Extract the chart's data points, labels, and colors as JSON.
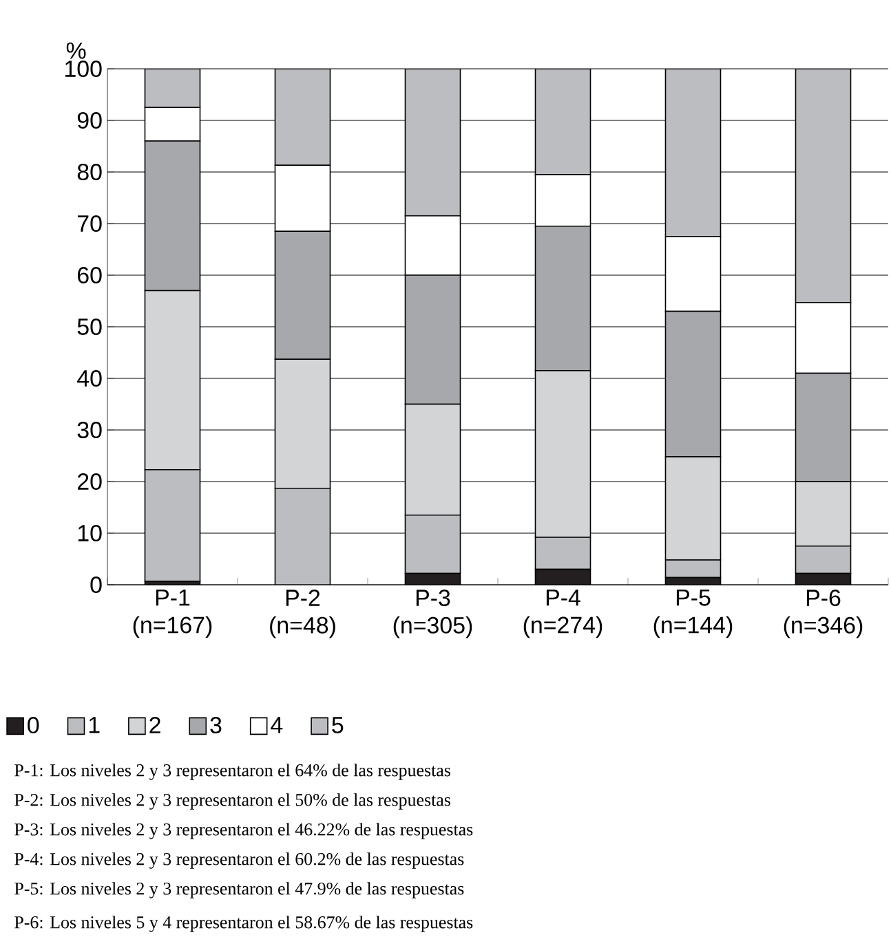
{
  "chart_data": {
    "type": "bar",
    "stacked": true,
    "ylabel": "%",
    "categories": [
      "P-1 (n=167)",
      "P-2 (n=48)",
      "P-3 (n=305)",
      "P-4 (n=274)",
      "P-5 (n=144)",
      "P-6 (n=346)"
    ],
    "series": [
      {
        "name": "0",
        "color": "#231f20",
        "values": [
          0.7,
          0,
          2.2,
          3,
          1.4,
          2.2
        ]
      },
      {
        "name": "1",
        "color": "#bcbdc0",
        "values": [
          21.6,
          18.7,
          11.3,
          6.2,
          3.4,
          5.3
        ]
      },
      {
        "name": "2",
        "color": "#d3d4d6",
        "values": [
          34.7,
          25,
          21.5,
          32.3,
          20,
          12.5
        ]
      },
      {
        "name": "3",
        "color": "#a7a8ab",
        "values": [
          29,
          24.8,
          25,
          28,
          28.2,
          21
        ]
      },
      {
        "name": "4",
        "color": "#ffffff",
        "values": [
          6.5,
          12.8,
          11.5,
          10,
          14.5,
          13.7
        ]
      },
      {
        "name": "5",
        "color": "#bcbdc0",
        "values": [
          7.5,
          18.7,
          28.5,
          20.5,
          32.5,
          45.3
        ]
      }
    ],
    "ylim": [
      0,
      100
    ],
    "yticks": [
      0,
      10,
      20,
      30,
      40,
      50,
      60,
      70,
      80,
      90,
      100
    ],
    "grid": "y",
    "legend": "bottom",
    "annotations": [
      "P-1: Los niveles 2 y 3 representaron el 64% de las respuestas",
      "P-2: Los niveles 2 y 3 representaron el 50% de las respuestas",
      "P-3: Los niveles 2 y 3 representaron el 46.22% de las respuestas",
      "P-4: Los niveles 2 y 3 representaron el 60.2% de las respuestas",
      "P-5: Los niveles 2 y 3 representaron el 47.9% de las respuestas",
      "P-6: Los niveles 5 y 4 representaron el 58.67% de las respuestas"
    ]
  }
}
